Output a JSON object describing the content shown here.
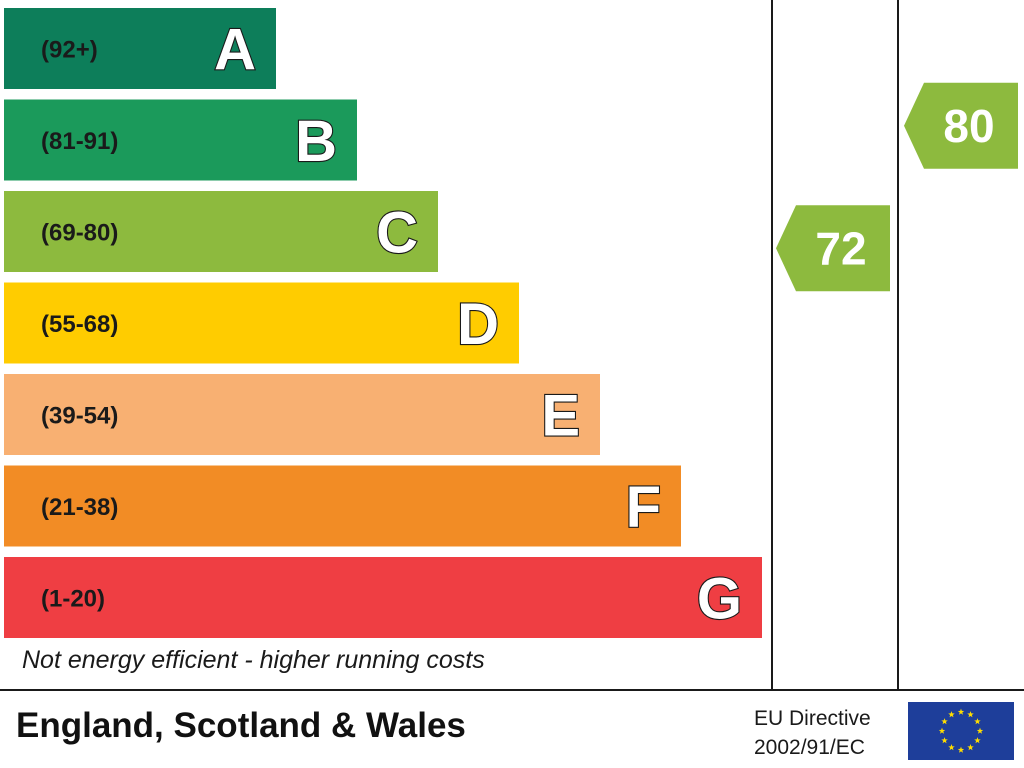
{
  "chart_data": {
    "type": "bar",
    "categories": [
      "A",
      "B",
      "C",
      "D",
      "E",
      "F",
      "G"
    ],
    "ranges": [
      "(92+)",
      "(81-91)",
      "(69-80)",
      "(55-68)",
      "(39-54)",
      "(21-38)",
      "(1-20)"
    ],
    "band_min": [
      92,
      81,
      69,
      55,
      39,
      21,
      1
    ],
    "band_max": [
      100,
      91,
      80,
      68,
      54,
      38,
      20
    ],
    "colors": [
      "#0d7e5a",
      "#1b9a5b",
      "#8dba3e",
      "#ffcc00",
      "#f8b072",
      "#f28c25",
      "#ef3e43"
    ],
    "ratings": [
      {
        "value": 72,
        "band": "C",
        "color": "#8dba3e"
      },
      {
        "value": 80,
        "band": "C",
        "color": "#8dba3e"
      }
    ],
    "footnote": "Not energy efficient - higher running costs"
  },
  "footer": {
    "region": "England, Scotland & Wales",
    "directive_line1": "EU Directive",
    "directive_line2": "2002/91/EC"
  },
  "icons": {
    "flag": "eu-flag-icon"
  }
}
